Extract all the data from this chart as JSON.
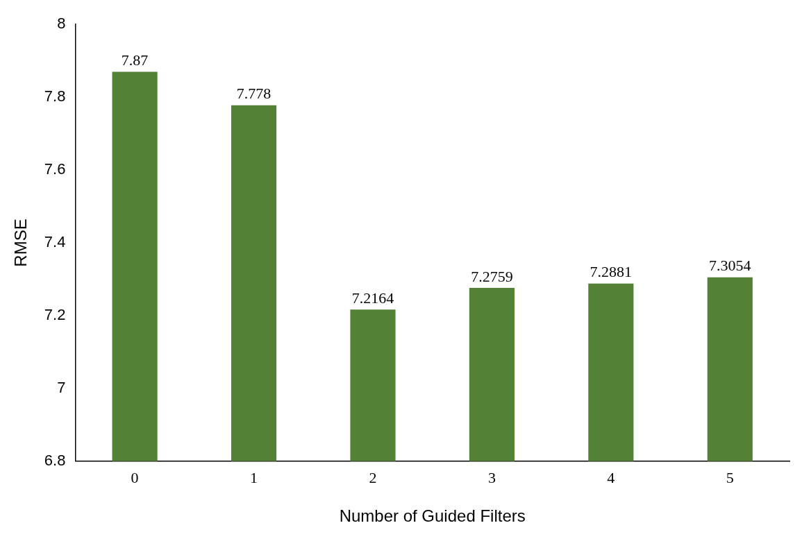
{
  "chart_data": {
    "type": "bar",
    "xlabel": "Number of Guided Filters",
    "ylabel": "RMSE",
    "categories": [
      "0",
      "1",
      "2",
      "3",
      "4",
      "5"
    ],
    "values": [
      7.87,
      7.778,
      7.2164,
      7.2759,
      7.2881,
      7.3054
    ],
    "color": "#538135",
    "ylim": [
      6.8,
      8
    ],
    "yticks": [
      6.8,
      7,
      7.2,
      7.4,
      7.6,
      7.8,
      8
    ],
    "grid": false,
    "data_labels": true,
    "legend": false
  }
}
